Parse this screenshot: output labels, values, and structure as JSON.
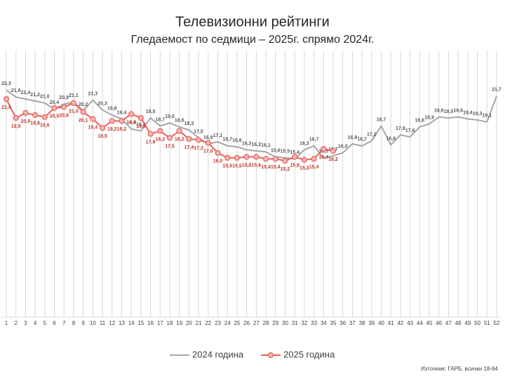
{
  "chart_data": {
    "type": "line",
    "title": "Телевизионни рейтинги",
    "subtitle": "Гледаемост по седмици – 2025г. спрямо 2024г.",
    "source": "Източник: ГАРБ, всички 18-64",
    "x": [
      1,
      2,
      3,
      4,
      5,
      6,
      7,
      8,
      9,
      10,
      11,
      12,
      13,
      14,
      15,
      16,
      17,
      18,
      19,
      20,
      21,
      22,
      23,
      24,
      25,
      26,
      27,
      28,
      29,
      30,
      31,
      32,
      33,
      34,
      35,
      36,
      37,
      38,
      39,
      40,
      41,
      42,
      43,
      44,
      45,
      46,
      47,
      48,
      49,
      50,
      51,
      52
    ],
    "xlim": [
      1,
      52
    ],
    "ylim": [
      0,
      30
    ],
    "grid": true,
    "legend": "bottom",
    "series": [
      {
        "name": "2024 година",
        "color": "#a6a6a6",
        "label_color": "#595959",
        "marker": false,
        "values": [
          22.3,
          21.6,
          21.4,
          21.2,
          21.0,
          20.4,
          20.9,
          21.1,
          20.2,
          21.3,
          20.3,
          19.8,
          19.4,
          18.4,
          18.2,
          19.5,
          18.7,
          19.0,
          18.6,
          18.3,
          17.5,
          16.9,
          17.1,
          16.7,
          16.6,
          16.3,
          16.2,
          16.1,
          15.6,
          15.5,
          15.4,
          16.3,
          16.7,
          15.5,
          15.7,
          16.0,
          16.9,
          16.7,
          17.2,
          18.7,
          16.8,
          17.8,
          17.6,
          18.6,
          18.9,
          19.6,
          19.5,
          19.6,
          19.4,
          19.3,
          19.1,
          21.7
        ],
        "value_labels": [
          "22,3",
          "21,6",
          "21,4",
          "21,2",
          "21,0",
          "20,4",
          "20,9",
          "21,1",
          "20,2",
          "21,3",
          "20,3",
          "19,8",
          "19,4",
          "18,4",
          "18,2",
          "19,5",
          "18,7",
          "19,0",
          "18,6",
          "18,3",
          "17,5",
          "16,9",
          "17,1",
          "16,7",
          "16,6",
          "16,3",
          "16,2",
          "16,1",
          "15,6",
          "15,5",
          "15,4",
          "16,3",
          "16,7",
          "15,5",
          "15,7",
          "16,0",
          "16,9",
          "16,7",
          "17,2",
          "18,7",
          "16,8",
          "17,8",
          "17,6",
          "18,6",
          "18,9",
          "19,6",
          "19,5",
          "19,6",
          "19,4",
          "19,3",
          "19,1",
          "21,7"
        ]
      },
      {
        "name": "2025 година",
        "color": "#e8605a",
        "label_color": "#c0392b",
        "marker": true,
        "values": [
          21.4,
          19.5,
          20.0,
          19.8,
          19.6,
          20.5,
          20.6,
          21.0,
          20.1,
          19.4,
          18.5,
          19.2,
          19.2,
          19.9,
          19.5,
          17.9,
          18.2,
          17.5,
          18.2,
          17.4,
          17.3,
          17.0,
          16.0,
          15.5,
          15.5,
          15.6,
          15.6,
          15.4,
          15.4,
          15.2,
          15.6,
          15.3,
          15.4,
          16.4,
          16.2,
          null,
          null,
          null,
          null,
          null,
          null,
          null,
          null,
          null,
          null,
          null,
          null,
          null,
          null,
          null,
          null,
          null
        ],
        "value_labels": [
          "21,4",
          "19,5",
          "20,0",
          "19,8",
          "19,6",
          "20,5",
          "20,6",
          "21,0",
          "20,1",
          "19,4",
          "18,5",
          "19,2",
          "19,2",
          "19,9",
          "19,5",
          "17,9",
          "18,2",
          "17,5",
          "18,2",
          "17,4",
          "17,3",
          "17,0",
          "16,0",
          "15,5",
          "15,5",
          "15,6",
          "15,6",
          "15,4",
          "15,4",
          "15,2",
          "15,6",
          "15,3",
          "15,4",
          "16,4",
          "16,2",
          null,
          null,
          null,
          null,
          null,
          null,
          null,
          null,
          null,
          null,
          null,
          null,
          null,
          null,
          null,
          null,
          null
        ]
      }
    ]
  }
}
